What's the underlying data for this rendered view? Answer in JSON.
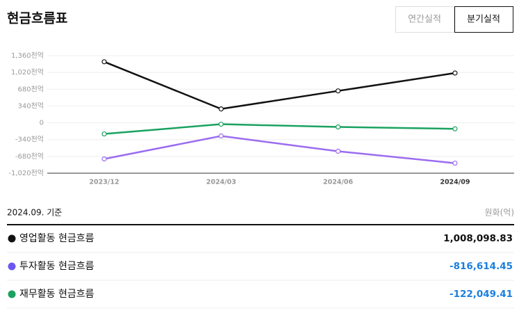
{
  "header": {
    "title": "현금흐름표",
    "toggles": [
      {
        "label": "연간실적",
        "selected": false
      },
      {
        "label": "분기실적",
        "selected": true
      }
    ]
  },
  "chart_data": {
    "type": "line",
    "categories": [
      "2023/12",
      "2024/03",
      "2024/06",
      "2024/09"
    ],
    "series": [
      {
        "name": "영업활동 현금흐름",
        "color": "#111111",
        "values": [
          1236,
          281,
          646,
          1008
        ]
      },
      {
        "name": "투자활동 현금흐름",
        "color": "#9b6cf0",
        "values": [
          -731,
          -267,
          -576,
          -817
        ]
      },
      {
        "name": "재무활동 현금흐름",
        "color": "#1aa260",
        "values": [
          -225,
          -28,
          -84,
          -122
        ]
      }
    ],
    "ylim": [
      -1020,
      1360
    ],
    "yticks": [
      {
        "value": -1020,
        "label": "-1,020천억"
      },
      {
        "value": -680,
        "label": "-680천억"
      },
      {
        "value": -340,
        "label": "-340천억"
      },
      0,
      {
        "value": 340,
        "label": "340천억"
      },
      {
        "value": 680,
        "label": "680천억"
      },
      {
        "value": 1020,
        "label": "1,020천억"
      },
      {
        "value": 1360,
        "label": "1,360천억"
      }
    ],
    "grid": true
  },
  "table": {
    "basis": "2024.09. 기준",
    "unit": "원화(억)",
    "rows": [
      {
        "label": "영업활동 현금흐름",
        "value": "1,008,098.83",
        "dot_color": "#111111",
        "value_color": "#111111"
      },
      {
        "label": "투자활동 현금흐름",
        "value": "-816,614.45",
        "dot_color": "#6b57f0",
        "value_color": "#1a7fe0"
      },
      {
        "label": "재무활동 현금흐름",
        "value": "-122,049.41",
        "dot_color": "#1aa260",
        "value_color": "#1a7fe0"
      }
    ]
  }
}
